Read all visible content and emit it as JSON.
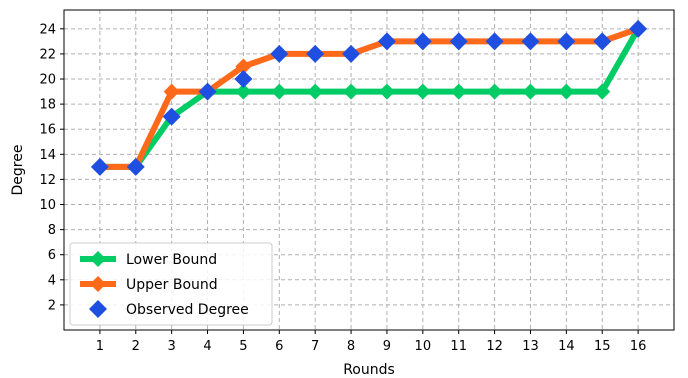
{
  "chart_data": {
    "type": "line",
    "xlabel": "Rounds",
    "ylabel": "Degree",
    "x": [
      1,
      2,
      3,
      4,
      5,
      6,
      7,
      8,
      9,
      10,
      11,
      12,
      13,
      14,
      15,
      16
    ],
    "xlim": [
      0,
      17
    ],
    "ylim": [
      0,
      25.5
    ],
    "xticks": [
      1,
      2,
      3,
      4,
      5,
      6,
      7,
      8,
      9,
      10,
      11,
      12,
      13,
      14,
      15,
      16
    ],
    "yticks": [
      2,
      4,
      6,
      8,
      10,
      12,
      14,
      16,
      18,
      20,
      22,
      24
    ],
    "grid": true,
    "legend_position": "lower-left",
    "series": [
      {
        "name": "Lower Bound",
        "style": "line-diamond",
        "color": "#00cc66",
        "values": [
          13,
          13,
          17,
          19,
          19,
          19,
          19,
          19,
          19,
          19,
          19,
          19,
          19,
          19,
          19,
          24
        ]
      },
      {
        "name": "Upper Bound",
        "style": "line-diamond",
        "color": "#ff6a1a",
        "values": [
          13,
          13,
          19,
          19,
          21,
          22,
          22,
          22,
          23,
          23,
          23,
          23,
          23,
          23,
          23,
          24
        ]
      },
      {
        "name": "Observed Degree",
        "style": "marker-diamond",
        "color": "#1f4fe0",
        "values": [
          13,
          13,
          17,
          19,
          20,
          22,
          22,
          22,
          23,
          23,
          23,
          23,
          23,
          23,
          23,
          24
        ]
      }
    ]
  }
}
